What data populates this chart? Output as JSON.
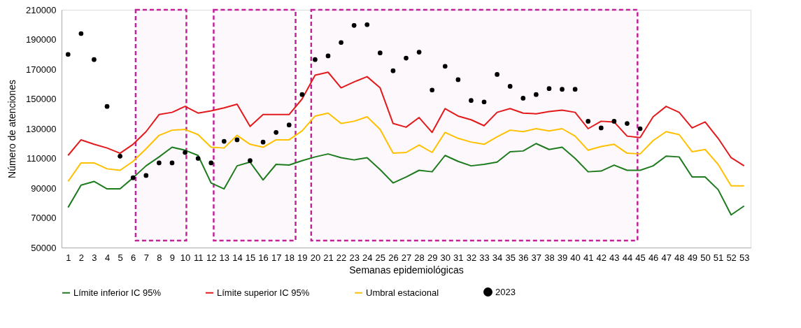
{
  "chart_data": {
    "type": "line",
    "xlabel": "Semanas epidemiológicas",
    "ylabel": "Número de atenciones",
    "x": [
      1,
      2,
      3,
      4,
      5,
      6,
      7,
      8,
      9,
      10,
      11,
      12,
      13,
      14,
      15,
      16,
      17,
      18,
      19,
      20,
      21,
      22,
      23,
      24,
      25,
      26,
      27,
      28,
      29,
      30,
      31,
      32,
      33,
      34,
      35,
      36,
      37,
      38,
      39,
      40,
      41,
      42,
      43,
      44,
      45,
      46,
      47,
      48,
      49,
      50,
      51,
      52,
      53
    ],
    "xlim": [
      0.5,
      53.5
    ],
    "xticks": [
      1,
      2,
      3,
      4,
      5,
      6,
      7,
      8,
      9,
      10,
      11,
      12,
      13,
      14,
      15,
      16,
      17,
      18,
      19,
      20,
      21,
      22,
      23,
      24,
      25,
      26,
      27,
      28,
      29,
      30,
      31,
      32,
      33,
      34,
      35,
      36,
      37,
      38,
      39,
      40,
      41,
      42,
      43,
      44,
      45,
      46,
      47,
      48,
      49,
      50,
      51,
      52,
      53
    ],
    "ylim": [
      50000,
      210000
    ],
    "yticks": [
      50000,
      70000,
      90000,
      110000,
      130000,
      150000,
      170000,
      190000,
      210000
    ],
    "grid": false,
    "legend": "bottom",
    "line_style": "solid",
    "series": [
      {
        "name": "Límite inferior IC 95%",
        "color": "#1e7b1e",
        "values": [
          77000,
          92000,
          94500,
          89500,
          89500,
          97000,
          105000,
          111000,
          117500,
          115500,
          112000,
          93500,
          89500,
          105000,
          107500,
          95500,
          106000,
          105500,
          108500,
          111000,
          113000,
          110500,
          109000,
          110500,
          102500,
          93500,
          97500,
          102000,
          101000,
          112000,
          108000,
          105000,
          106000,
          107500,
          114500,
          115000,
          120000,
          116000,
          117500,
          110000,
          101000,
          101500,
          105500,
          102000,
          102000,
          105000,
          111500,
          111000,
          97500,
          97500,
          89000,
          72000,
          78000
        ]
      },
      {
        "name": "Límite superior IC 95%",
        "color": "#e31a1c",
        "values": [
          112000,
          122500,
          119500,
          117000,
          113500,
          119500,
          128000,
          139500,
          141000,
          145000,
          140500,
          142000,
          144000,
          146500,
          131500,
          139500,
          139500,
          139500,
          150000,
          166000,
          168000,
          157500,
          161500,
          165000,
          157500,
          133500,
          131000,
          137500,
          127500,
          143500,
          138500,
          136000,
          132000,
          141000,
          143500,
          140500,
          140000,
          141500,
          142500,
          141000,
          130000,
          135000,
          134500,
          125000,
          124000,
          138000,
          145000,
          141000,
          130500,
          134500,
          123500,
          110500,
          105000
        ]
      },
      {
        "name": "Umbral estacional",
        "color": "#ffc000",
        "values": [
          94500,
          107000,
          107000,
          103000,
          102000,
          108000,
          116500,
          125500,
          129000,
          129500,
          126000,
          117500,
          117000,
          125500,
          119500,
          117500,
          122500,
          122500,
          128500,
          138500,
          140500,
          133500,
          135000,
          138000,
          129500,
          113500,
          114000,
          119000,
          114000,
          127500,
          123500,
          121000,
          119500,
          124500,
          129000,
          128000,
          130000,
          128500,
          130000,
          125000,
          115500,
          118000,
          119500,
          113500,
          113000,
          122000,
          128000,
          126000,
          114500,
          116000,
          106000,
          91500,
          91500
        ]
      },
      {
        "name": "2023",
        "type": "scatter",
        "marker": "circle",
        "color": "#000000",
        "values": [
          180000,
          194000,
          176500,
          145000,
          111500,
          97000,
          98500,
          107000,
          107000,
          114000,
          110000,
          107000,
          121500,
          122500,
          108500,
          121000,
          127500,
          132500,
          153000,
          176500,
          179000,
          188000,
          199500,
          200000,
          181000,
          169000,
          177500,
          181500,
          156000,
          172000,
          163000,
          149000,
          148000,
          166500,
          158500,
          150500,
          153000,
          157000,
          156500,
          156500,
          135000,
          130500,
          135000,
          133500,
          130000,
          null,
          null,
          null,
          null,
          null,
          null,
          null,
          null
        ]
      }
    ],
    "bands": [
      {
        "axis": "x",
        "from": 6.2,
        "to": 10.1,
        "color": "#c0239a"
      },
      {
        "axis": "x",
        "from": 12.2,
        "to": 18.5,
        "color": "#c0239a"
      },
      {
        "axis": "x",
        "from": 19.7,
        "to": 44.8,
        "color": "#c0239a"
      }
    ]
  }
}
